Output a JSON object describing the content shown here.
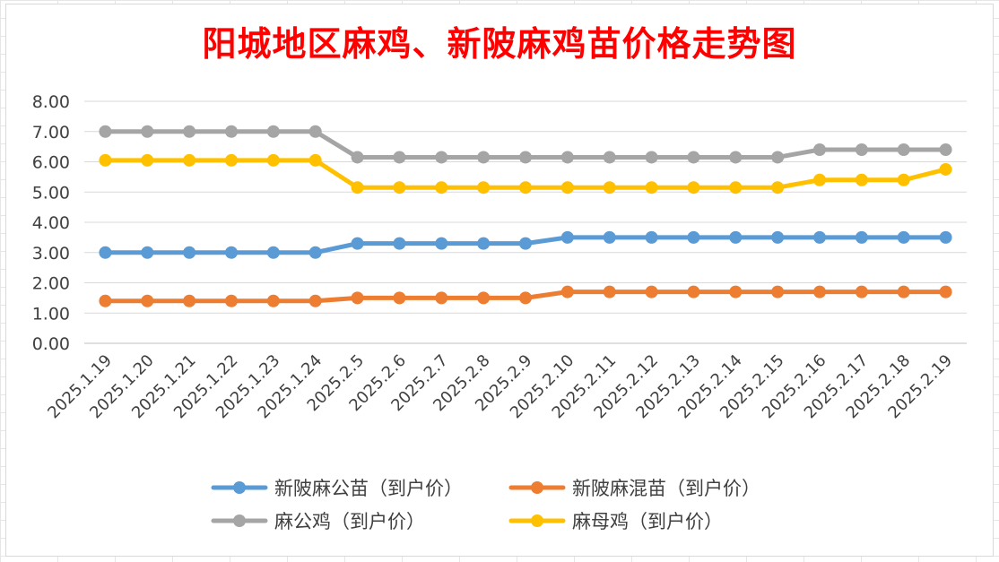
{
  "chart_data": {
    "type": "line",
    "title": "阳城地区麻鸡、新陂麻鸡苗价格走势图",
    "title_color": "#ff0000",
    "xlabel": "",
    "ylabel": "",
    "ylim": [
      0,
      8
    ],
    "yticks": [
      "0.00",
      "1.00",
      "2.00",
      "3.00",
      "4.00",
      "5.00",
      "6.00",
      "7.00",
      "8.00"
    ],
    "grid": true,
    "legend_position": "bottom",
    "categories": [
      "2025.1.19",
      "2025.1.20",
      "2025.1.21",
      "2025.1.22",
      "2025.1.23",
      "2025.1.24",
      "2025.2.5",
      "2025.2.6",
      "2025.2.7",
      "2025.2.8",
      "2025.2.9",
      "2025.2.10",
      "2025.2.11",
      "2025.2.12",
      "2025.2.13",
      "2025.2.14",
      "2025.2.15",
      "2025.2.16",
      "2025.2.17",
      "2025.2.18",
      "2025.2.19"
    ],
    "series": [
      {
        "name": "新陂麻公苗（到户价）",
        "color": "#5b9bd5",
        "values": [
          3.0,
          3.0,
          3.0,
          3.0,
          3.0,
          3.0,
          3.3,
          3.3,
          3.3,
          3.3,
          3.3,
          3.5,
          3.5,
          3.5,
          3.5,
          3.5,
          3.5,
          3.5,
          3.5,
          3.5,
          3.5
        ]
      },
      {
        "name": "新陂麻混苗（到户价）",
        "color": "#ed7d31",
        "values": [
          1.4,
          1.4,
          1.4,
          1.4,
          1.4,
          1.4,
          1.5,
          1.5,
          1.5,
          1.5,
          1.5,
          1.7,
          1.7,
          1.7,
          1.7,
          1.7,
          1.7,
          1.7,
          1.7,
          1.7,
          1.7
        ]
      },
      {
        "name": "麻公鸡（到户价）",
        "color": "#a5a5a5",
        "values": [
          7.0,
          7.0,
          7.0,
          7.0,
          7.0,
          7.0,
          6.15,
          6.15,
          6.15,
          6.15,
          6.15,
          6.15,
          6.15,
          6.15,
          6.15,
          6.15,
          6.15,
          6.4,
          6.4,
          6.4,
          6.4
        ]
      },
      {
        "name": "麻母鸡（到户价）",
        "color": "#ffc000",
        "values": [
          6.05,
          6.05,
          6.05,
          6.05,
          6.05,
          6.05,
          5.15,
          5.15,
          5.15,
          5.15,
          5.15,
          5.15,
          5.15,
          5.15,
          5.15,
          5.15,
          5.15,
          5.4,
          5.4,
          5.4,
          5.75
        ]
      }
    ]
  }
}
